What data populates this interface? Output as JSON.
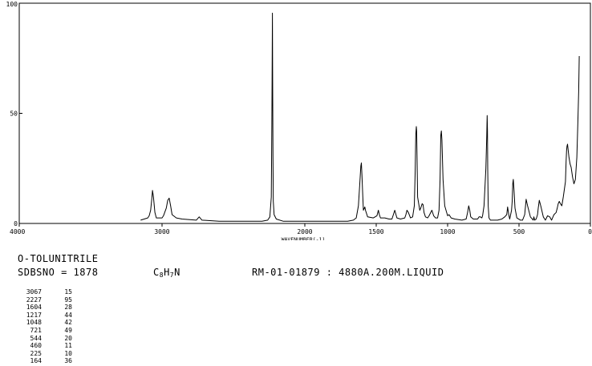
{
  "chart_data": {
    "type": "line",
    "title": "",
    "xlabel": "WAVENUMBER(-1)",
    "ylabel": "",
    "xlim": [
      4000,
      0
    ],
    "ylim": [
      0,
      100
    ],
    "x_ticks": [
      "4000",
      "3000",
      "2000",
      "1500",
      "1000",
      "500",
      "0"
    ],
    "y_ticks": [
      "100",
      "50",
      "0"
    ],
    "grid": false,
    "series": [
      {
        "x": [
          3150,
          3100,
          3090,
          3080,
          3072,
          3067,
          3060,
          3050,
          3040,
          3000,
          2990,
          2970,
          2960,
          2950,
          2940,
          2930,
          2900,
          2860,
          2760,
          2740,
          2720,
          2600,
          2500,
          2300,
          2260,
          2245,
          2235,
          2231,
          2229,
          2227,
          2225,
          2223,
          2221,
          2215,
          2200,
          2150,
          2050,
          1950,
          1850,
          1750,
          1700,
          1660,
          1640,
          1625,
          1615,
          1608,
          1604,
          1600,
          1594,
          1590,
          1580,
          1575,
          1560,
          1520,
          1495,
          1485,
          1478,
          1470,
          1440,
          1410,
          1390,
          1380,
          1370,
          1355,
          1330,
          1300,
          1292,
          1285,
          1275,
          1260,
          1245,
          1233,
          1227,
          1223,
          1219,
          1217,
          1214,
          1210,
          1200,
          1195,
          1188,
          1178,
          1172,
          1165,
          1155,
          1140,
          1130,
          1110,
          1098,
          1085,
          1070,
          1060,
          1053,
          1048,
          1044,
          1040,
          1032,
          1020,
          1000,
          990,
          975,
          950,
          900,
          870,
          860,
          852,
          845,
          838,
          820,
          790,
          780,
          770,
          760,
          755,
          745,
          732,
          726,
          723,
          721,
          719,
          716,
          710,
          700,
          680,
          650,
          620,
          600,
          586,
          580,
          572,
          565,
          560,
          552,
          548,
          544,
          540,
          535,
          528,
          515,
          490,
          475,
          460,
          450,
          440,
          420,
          400,
          396,
          390,
          380,
          370,
          365,
          358,
          348,
          330,
          315,
          300,
          285,
          272,
          265,
          255,
          240,
          232,
          225,
          218,
          210,
          200,
          190,
          175,
          170,
          167,
          164,
          160,
          155,
          150,
          142,
          135,
          125,
          115,
          105,
          95,
          88,
          82,
          78
        ],
        "y": [
          1.5,
          2.5,
          3.5,
          6,
          11,
          15,
          12,
          5,
          2.5,
          2.5,
          3.5,
          7,
          10.5,
          11.5,
          8,
          4,
          2.5,
          2,
          1.5,
          3,
          1.5,
          1,
          1,
          1,
          1.5,
          3,
          12,
          45,
          65,
          95.5,
          65,
          30,
          10,
          4,
          2,
          1,
          1,
          1,
          1,
          1,
          1,
          1.5,
          2.5,
          8,
          18,
          26,
          27.5,
          22,
          12,
          6,
          7.5,
          6,
          3,
          2.5,
          3.5,
          6,
          4,
          2.5,
          2.5,
          2,
          2,
          4,
          6,
          2.5,
          2,
          2.5,
          4,
          6,
          5,
          2.5,
          3,
          8,
          24,
          40,
          44,
          42,
          30,
          12,
          8,
          6,
          7,
          9,
          8.5,
          5,
          3,
          2.5,
          3.5,
          6,
          3.5,
          2.5,
          2.5,
          6,
          20,
          40,
          42,
          38,
          20,
          8,
          3.5,
          4,
          2.5,
          2,
          1.5,
          2,
          5,
          8,
          6,
          3,
          2,
          2,
          3,
          3,
          2.5,
          3.5,
          8,
          25,
          40,
          49,
          42,
          25,
          8,
          2.5,
          1.5,
          1.5,
          1.5,
          2,
          3,
          4,
          7.5,
          4,
          2,
          3.5,
          6,
          10,
          18,
          20,
          15,
          7,
          2.5,
          1.5,
          1.5,
          4,
          11,
          8,
          3,
          1.5,
          3,
          1.5,
          2,
          4,
          7,
          10.5,
          8,
          3,
          1.5,
          3.5,
          3,
          1.5,
          2.5,
          4,
          5,
          7,
          9,
          10,
          9,
          8,
          12,
          19,
          28,
          33,
          35,
          36,
          33,
          30,
          27,
          25.5,
          21,
          18,
          20,
          30,
          45,
          60,
          76
        ]
      }
    ],
    "peaks_table": [
      [
        "3067",
        "15"
      ],
      [
        "2227",
        "95"
      ],
      [
        "1604",
        "28"
      ],
      [
        "1217",
        "44"
      ],
      [
        "1048",
        "42"
      ],
      [
        "721",
        "49"
      ],
      [
        "544",
        "20"
      ],
      [
        "460",
        "11"
      ],
      [
        "225",
        "10"
      ],
      [
        "164",
        "36"
      ]
    ]
  },
  "compound": {
    "name": "O-TOLUNITRILE",
    "sdbs_line": "SDBSNO = 1878",
    "formula_c": "C",
    "formula_c_count": "8",
    "formula_h": "H",
    "formula_h_count": "7",
    "formula_n": "N",
    "measurement": "RM-01-01879 : 4880A.200M.LIQUID"
  },
  "colors": {
    "line": "#000000",
    "background": "#ffffff"
  }
}
